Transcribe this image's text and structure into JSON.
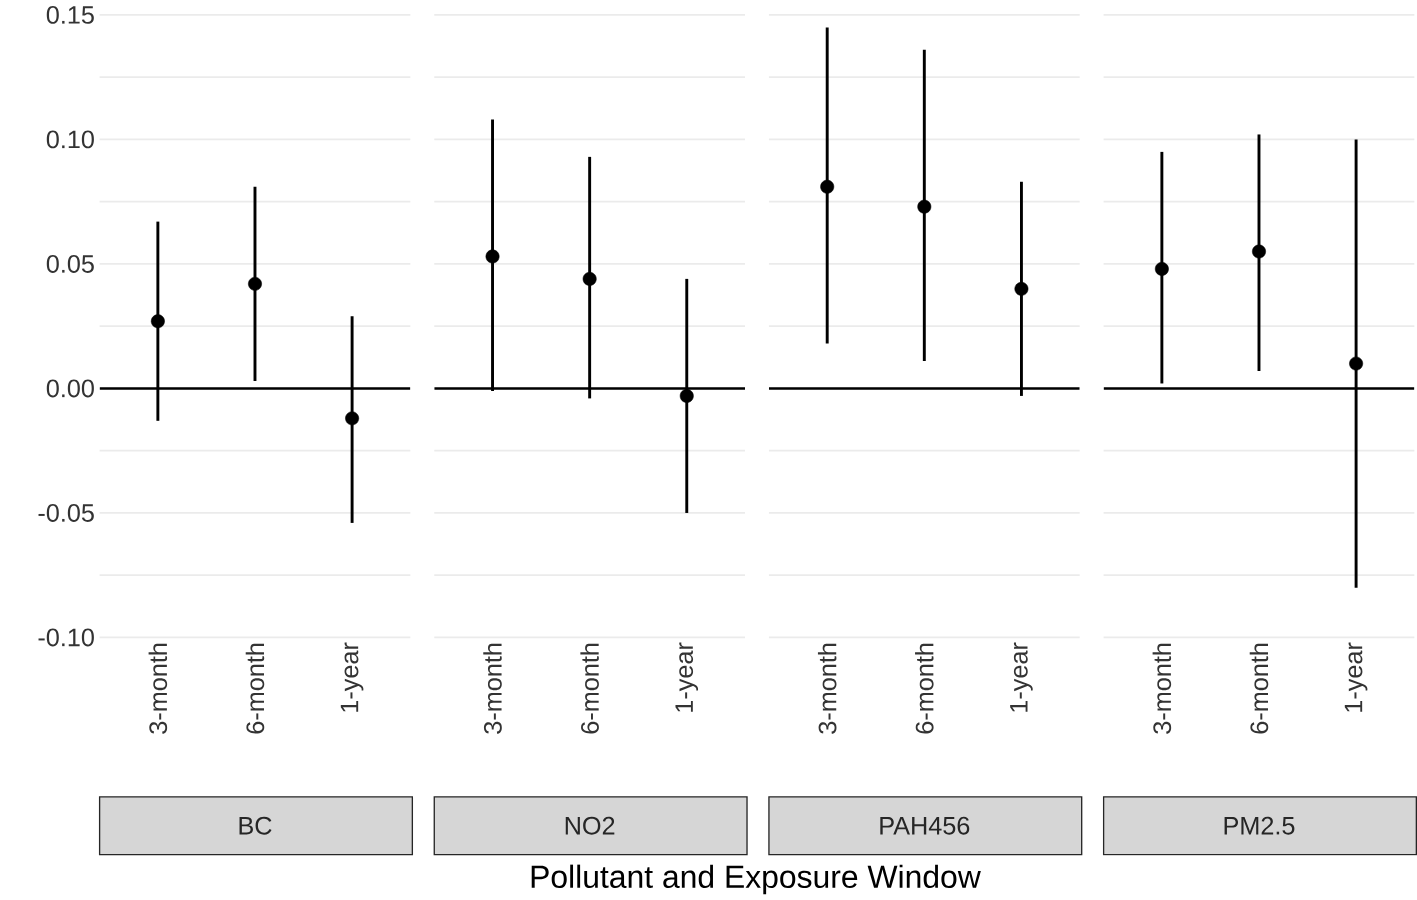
{
  "chart_data": [
    {
      "type": "scatter",
      "title": "BC",
      "xlabel": "Pollutant and Exposure Window",
      "categories": [
        "3-month",
        "6-month",
        "1-year"
      ],
      "values": [
        0.027,
        0.042,
        -0.012
      ],
      "errors": [
        [
          -0.013,
          0.067
        ],
        [
          0.003,
          0.081
        ],
        [
          -0.054,
          0.029
        ]
      ],
      "color": "#000000",
      "marker": "circle",
      "grid": "y",
      "ylim": [
        -0.1,
        0.15
      ],
      "yticks": [
        {
          "value": -0.1,
          "label": "-0.10"
        },
        {
          "value": -0.075,
          "label": null
        },
        {
          "value": -0.05,
          "label": "-0.05"
        },
        {
          "value": -0.025,
          "label": null
        },
        {
          "value": 0,
          "label": "0.00"
        },
        {
          "value": 0.025,
          "label": null
        },
        {
          "value": 0.05,
          "label": "0.05"
        },
        {
          "value": 0.075,
          "label": null
        },
        {
          "value": 0.1,
          "label": "0.10"
        },
        {
          "value": 0.125,
          "label": null
        },
        {
          "value": 0.15,
          "label": "0.15"
        }
      ],
      "ref_lines": [
        {
          "axis": "y",
          "value": 0
        }
      ]
    },
    {
      "type": "scatter",
      "title": "NO2",
      "categories": [
        "3-month",
        "6-month",
        "1-year"
      ],
      "values": [
        0.053,
        0.044,
        -0.003
      ],
      "errors": [
        [
          -0.001,
          0.108
        ],
        [
          -0.004,
          0.093
        ],
        [
          -0.05,
          0.044
        ]
      ],
      "color": "#000000",
      "marker": "circle",
      "grid": "y",
      "tick_labels": "x",
      "ylim": [
        -0.1,
        0.15
      ],
      "yticks": [
        {
          "value": -0.1,
          "label": null
        },
        {
          "value": -0.075,
          "label": null
        },
        {
          "value": -0.05,
          "label": null
        },
        {
          "value": -0.025,
          "label": null
        },
        {
          "value": 0,
          "label": null
        },
        {
          "value": 0.025,
          "label": null
        },
        {
          "value": 0.05,
          "label": null
        },
        {
          "value": 0.075,
          "label": null
        },
        {
          "value": 0.1,
          "label": null
        },
        {
          "value": 0.125,
          "label": null
        },
        {
          "value": 0.15,
          "label": null
        }
      ],
      "ref_lines": [
        {
          "axis": "y",
          "value": 0
        }
      ]
    },
    {
      "type": "scatter",
      "title": "PAH456",
      "categories": [
        "3-month",
        "6-month",
        "1-year"
      ],
      "values": [
        0.081,
        0.073,
        0.04
      ],
      "errors": [
        [
          0.018,
          0.145
        ],
        [
          0.011,
          0.136
        ],
        [
          -0.003,
          0.083
        ]
      ],
      "color": "#000000",
      "marker": "circle",
      "grid": "y",
      "tick_labels": "x",
      "ylim": [
        -0.1,
        0.15
      ],
      "yticks": [
        {
          "value": -0.1,
          "label": null
        },
        {
          "value": -0.075,
          "label": null
        },
        {
          "value": -0.05,
          "label": null
        },
        {
          "value": -0.025,
          "label": null
        },
        {
          "value": 0,
          "label": null
        },
        {
          "value": 0.025,
          "label": null
        },
        {
          "value": 0.05,
          "label": null
        },
        {
          "value": 0.075,
          "label": null
        },
        {
          "value": 0.1,
          "label": null
        },
        {
          "value": 0.125,
          "label": null
        },
        {
          "value": 0.15,
          "label": null
        }
      ],
      "ref_lines": [
        {
          "axis": "y",
          "value": 0
        }
      ]
    },
    {
      "type": "scatter",
      "title": "PM2.5",
      "categories": [
        "3-month",
        "6-month",
        "1-year"
      ],
      "values": [
        0.048,
        0.055,
        0.01
      ],
      "errors": [
        [
          0.002,
          0.095
        ],
        [
          0.007,
          0.102
        ],
        [
          -0.08,
          0.1
        ]
      ],
      "color": "#000000",
      "marker": "circle",
      "grid": "y",
      "tick_labels": "x",
      "ylim": [
        -0.1,
        0.15
      ],
      "yticks": [
        {
          "value": -0.1,
          "label": null
        },
        {
          "value": -0.075,
          "label": null
        },
        {
          "value": -0.05,
          "label": null
        },
        {
          "value": -0.025,
          "label": null
        },
        {
          "value": 0,
          "label": null
        },
        {
          "value": 0.025,
          "label": null
        },
        {
          "value": 0.05,
          "label": null
        },
        {
          "value": 0.075,
          "label": null
        },
        {
          "value": 0.1,
          "label": null
        },
        {
          "value": 0.125,
          "label": null
        },
        {
          "value": 0.15,
          "label": null
        }
      ],
      "ref_lines": [
        {
          "axis": "y",
          "value": 0
        }
      ]
    }
  ]
}
